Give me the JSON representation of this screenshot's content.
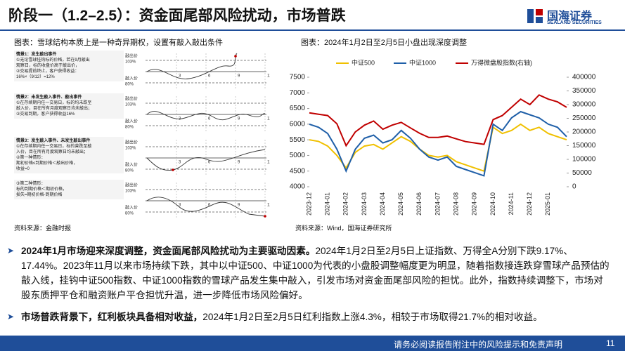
{
  "header": {
    "title": "阶段一（1.2–2.5）：资金面尾部风险扰动，市场普跌",
    "logo_cn": "国海证券",
    "logo_en": "SEALAND SECURITIES"
  },
  "left_figure": {
    "caption": "图表：雪球结构本质上是一种奇异期权，设置有敲入敲出条件",
    "source": "资料来源：金融时报",
    "panels": [
      {
        "lines": [
          "情景1：发生敲出事件",
          "①无论雪球挂钩标的价格，若在9月敲出",
          "观察日，标的收盘价高于敲出价，",
          "②交易提前终止，客户获得收益：",
          "16%×（9/12）=12%"
        ],
        "ko_label": "敲出价",
        "ko_pct": "103%",
        "ki_label": "敲入价",
        "ki_pct": "80%",
        "months": [
          "3",
          "6",
          "9",
          "12"
        ]
      },
      {
        "lines": [
          "情景2：未发生敲入事件、敲出事件",
          "①在存续期内任一交易日，标的均未跌至",
          "敲入价，目在所有月度观察日均未敲出；",
          "②交易到期，客户获得收益16%"
        ],
        "ko_label": "敲出价",
        "ko_pct": "103%",
        "ki_label": "敲入价",
        "ki_pct": "80%",
        "months": [
          "3",
          "6",
          "9",
          "12"
        ]
      },
      {
        "lines": [
          "情景3：发生敲入事件、未发生敲出事件",
          "①在存续期内任一交易日，标的曾跌至敲",
          "入价，目在所有月度观察日均未敲出；",
          "②第一种情形：",
          "期初价格≤到期价格＜敲出价格，",
          "收益=0"
        ],
        "ko_label": "敲出价",
        "ko_pct": "103%",
        "ki_label": "敲入价",
        "ki_pct": "80%",
        "months": [
          "3",
          "6",
          "9",
          "12"
        ]
      },
      {
        "lines": [
          "③第二种情形：",
          "标的到期价格＜期初价格，",
          "损失=期初价格-到期价格"
        ],
        "ko_label": "敲出价",
        "ko_pct": "103%",
        "ki_label": "敲入价",
        "ki_pct": "80%",
        "months": [
          "3",
          "6",
          "9",
          "12"
        ]
      }
    ]
  },
  "chart_data": {
    "type": "line",
    "title": "图表：2024年1月2日至2月5日小盘出现深度调整",
    "source": "资料来源：Wind，国海证券研究所",
    "categories": [
      "2023-12",
      null,
      "2024-01",
      null,
      "2024-02",
      null,
      "2024-03",
      null,
      "2024-04",
      null,
      "2024-05",
      null,
      "2024-06",
      null,
      "2024-07",
      null,
      "2024-08",
      null,
      "2024-09",
      null,
      "2024-10",
      null,
      "2024-11",
      null,
      "2024-12",
      null,
      "2025-01",
      null,
      null
    ],
    "series": [
      {
        "name": "中证500",
        "color": "#f0c000",
        "values": [
          5500,
          5450,
          5300,
          5000,
          4600,
          5100,
          5300,
          5350,
          5200,
          5400,
          5600,
          5450,
          5200,
          5000,
          4950,
          5000,
          4800,
          4700,
          4600,
          4500,
          5900,
          5700,
          5800,
          6000,
          5800,
          5900,
          5700,
          5600,
          5500
        ]
      },
      {
        "name": "中证1000",
        "color": "#1f5fa8",
        "values": [
          6000,
          5900,
          5700,
          5200,
          4500,
          5200,
          5550,
          5650,
          5400,
          5500,
          5800,
          5550,
          5200,
          4950,
          4850,
          4950,
          4650,
          4550,
          4450,
          4350,
          6000,
          5800,
          6200,
          6400,
          6300,
          6200,
          6000,
          5900,
          5600
        ]
      },
      {
        "name": "万得微盘股指数(右轴)",
        "color": "#c00000",
        "axis": "y2",
        "values": [
          270000,
          265000,
          260000,
          230000,
          150000,
          200000,
          225000,
          240000,
          210000,
          225000,
          235000,
          215000,
          195000,
          180000,
          180000,
          185000,
          175000,
          165000,
          160000,
          155000,
          245000,
          260000,
          290000,
          320000,
          300000,
          335000,
          320000,
          310000,
          290000
        ]
      }
    ],
    "ylim": [
      4000,
      7500
    ],
    "yticks": [
      4000,
      4500,
      5000,
      5500,
      6000,
      6500,
      7000,
      7500
    ],
    "y2lim": [
      0,
      400000
    ],
    "y2ticks": [
      0,
      50000,
      100000,
      150000,
      200000,
      250000,
      300000,
      350000,
      400000
    ]
  },
  "bullets": [
    {
      "bold": "2024年1月市场迎来深度调整，资金面尾部风险扰动为主要驱动因素。",
      "text": "2024年1月2日至2月5日上证指数、万得全A分别下跌9.17%、17.44%。2023年11月以来市场持续下跌，其中以中证500、中证1000为代表的小盘股调整幅度更为明显，随着指数接连跌穿雪球产品预估的敲入线，挂钩中证500指数、中证1000指数的雪球产品发生集中敲入，引发市场对资金面尾部风险的担忧。此外，指数持续调整下，市场对股东质押平仓和融资账户平仓担忧升温，进一步降低市场风险偏好。"
    },
    {
      "bold": "市场普跌背景下，红利板块具备相对收益，",
      "text": "2024年1月2日至2月5日红利指数上涨4.3%，相较于市场取得21.7%的相对收益。"
    }
  ],
  "footer": {
    "disclaimer": "请务必阅读报告附注中的风险提示和免责声明",
    "page": "11"
  }
}
